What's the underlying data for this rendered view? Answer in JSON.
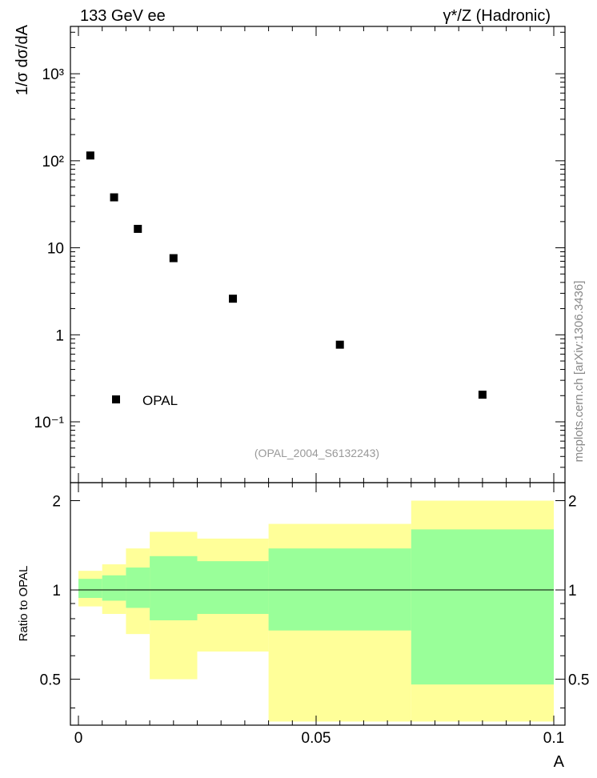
{
  "header": {
    "left": "133 GeV ee",
    "right": "γ*/Z (Hadronic)"
  },
  "side_label": "mcplots.cern.ch [arXiv:1306.3436]",
  "reference": "(OPAL_2004_S6132243)",
  "colors": {
    "band_outer": "#ffff99",
    "band_inner": "#99ff99",
    "markers": "#000000",
    "axes": "#000000",
    "side_label": "#888888",
    "reference": "#999999"
  },
  "chart_data": [
    {
      "type": "scatter",
      "ylabel": "1/σ dσ/dA",
      "log_y": true,
      "xlim": [
        0,
        0.1
      ],
      "ylim": [
        0.02,
        3500
      ],
      "y_tick_labels": [
        "10⁻¹",
        "1",
        "10",
        "10²",
        "10³"
      ],
      "y_tick_values": [
        0.1,
        1,
        10,
        100,
        1000
      ],
      "legend": {
        "entry": "OPAL",
        "placement": "bottom-left"
      },
      "series": [
        {
          "name": "OPAL",
          "x": [
            0.0025,
            0.0075,
            0.0125,
            0.02,
            0.0325,
            0.055,
            0.085
          ],
          "y": [
            115,
            38,
            16.5,
            7.6,
            2.6,
            0.77,
            0.205
          ]
        }
      ]
    },
    {
      "type": "area",
      "ylabel": "Ratio to OPAL",
      "xlabel": "A",
      "xlim": [
        0,
        0.1
      ],
      "ylim": [
        0.35,
        2.3
      ],
      "x_tick_labels": [
        "0",
        "0.05",
        "0.1"
      ],
      "x_tick_values": [
        0,
        0.05,
        0.1
      ],
      "y_tick_labels": [
        "0.5",
        "1",
        "2"
      ],
      "y_tick_values": [
        0.5,
        1,
        2
      ],
      "reference_line": 1,
      "bins": [
        0,
        0.005,
        0.01,
        0.015,
        0.025,
        0.04,
        0.07,
        0.1
      ],
      "outer_band": {
        "lo": [
          0.88,
          0.83,
          0.71,
          0.5,
          0.62,
          0.36,
          0.36
        ],
        "hi": [
          1.16,
          1.22,
          1.38,
          1.57,
          1.49,
          1.67,
          2.0
        ]
      },
      "inner_band": {
        "lo": [
          0.94,
          0.92,
          0.87,
          0.79,
          0.83,
          0.73,
          0.48
        ],
        "hi": [
          1.09,
          1.12,
          1.19,
          1.3,
          1.25,
          1.38,
          1.6
        ]
      }
    }
  ]
}
